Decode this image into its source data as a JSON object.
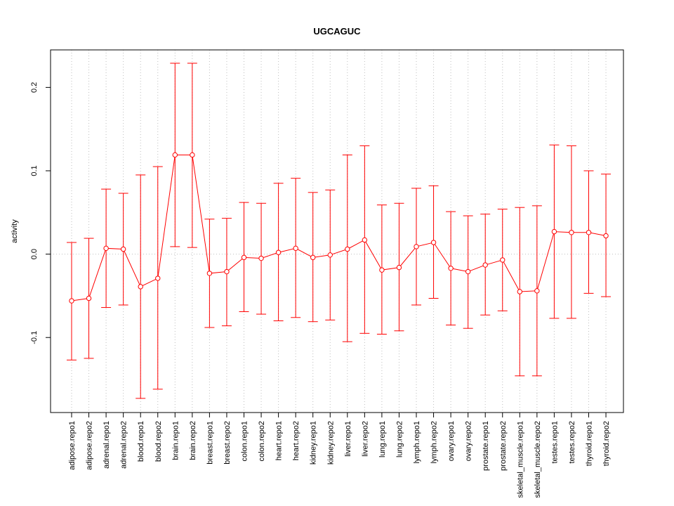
{
  "chart_data": {
    "type": "line",
    "title": "UGCAGUC",
    "xlabel": "",
    "ylabel": "activity",
    "ylim": [
      -0.19,
      0.245
    ],
    "yticks": [
      -0.1,
      0.0,
      0.1,
      0.2
    ],
    "ytick_labels": [
      "-0.1",
      "0.0",
      "0.1",
      "0.2"
    ],
    "grid": true,
    "series_color": "#ff0000",
    "grid_color": "#bebebe",
    "categories": [
      "adipose.repo1",
      "adipose.repo2",
      "adrenal.repo1",
      "adrenal.repo2",
      "blood.repo1",
      "blood.repo2",
      "brain.repo1",
      "brain.repo2",
      "breast.repo1",
      "breast.repo2",
      "colon.repo1",
      "colon.repo2",
      "heart.repo1",
      "heart.repo2",
      "kidney.repo1",
      "kidney.repo2",
      "liver.repo1",
      "liver.repo2",
      "lung.repo1",
      "lung.repo2",
      "lymph.repo1",
      "lymph.repo2",
      "ovary.repo1",
      "ovary.repo2",
      "prostate.repo1",
      "prostate.repo2",
      "skeletal_muscle.repo1",
      "skeletal_muscle.repo2",
      "testes.repo1",
      "testes.repo2",
      "thyroid.repo1",
      "thyroid.repo2"
    ],
    "values": [
      -0.056,
      -0.053,
      0.007,
      0.006,
      -0.039,
      -0.029,
      0.119,
      0.119,
      -0.023,
      -0.021,
      -0.004,
      -0.005,
      0.002,
      0.007,
      -0.004,
      -0.001,
      0.006,
      0.017,
      -0.019,
      -0.016,
      0.009,
      0.014,
      -0.017,
      -0.021,
      -0.013,
      -0.007,
      -0.045,
      -0.044,
      0.027,
      0.026,
      0.026,
      0.022
    ],
    "upper": [
      0.014,
      0.019,
      0.078,
      0.073,
      0.095,
      0.105,
      0.229,
      0.229,
      0.042,
      0.043,
      0.062,
      0.061,
      0.085,
      0.091,
      0.074,
      0.077,
      0.119,
      0.13,
      0.059,
      0.061,
      0.079,
      0.082,
      0.051,
      0.046,
      0.048,
      0.054,
      0.056,
      0.058,
      0.131,
      0.13,
      0.1,
      0.096
    ],
    "lower": [
      -0.127,
      -0.125,
      -0.064,
      -0.061,
      -0.173,
      -0.162,
      0.009,
      0.008,
      -0.088,
      -0.086,
      -0.069,
      -0.072,
      -0.08,
      -0.076,
      -0.081,
      -0.079,
      -0.105,
      -0.095,
      -0.096,
      -0.092,
      -0.061,
      -0.053,
      -0.085,
      -0.089,
      -0.073,
      -0.068,
      -0.146,
      -0.146,
      -0.077,
      -0.077,
      -0.047,
      -0.051
    ]
  }
}
